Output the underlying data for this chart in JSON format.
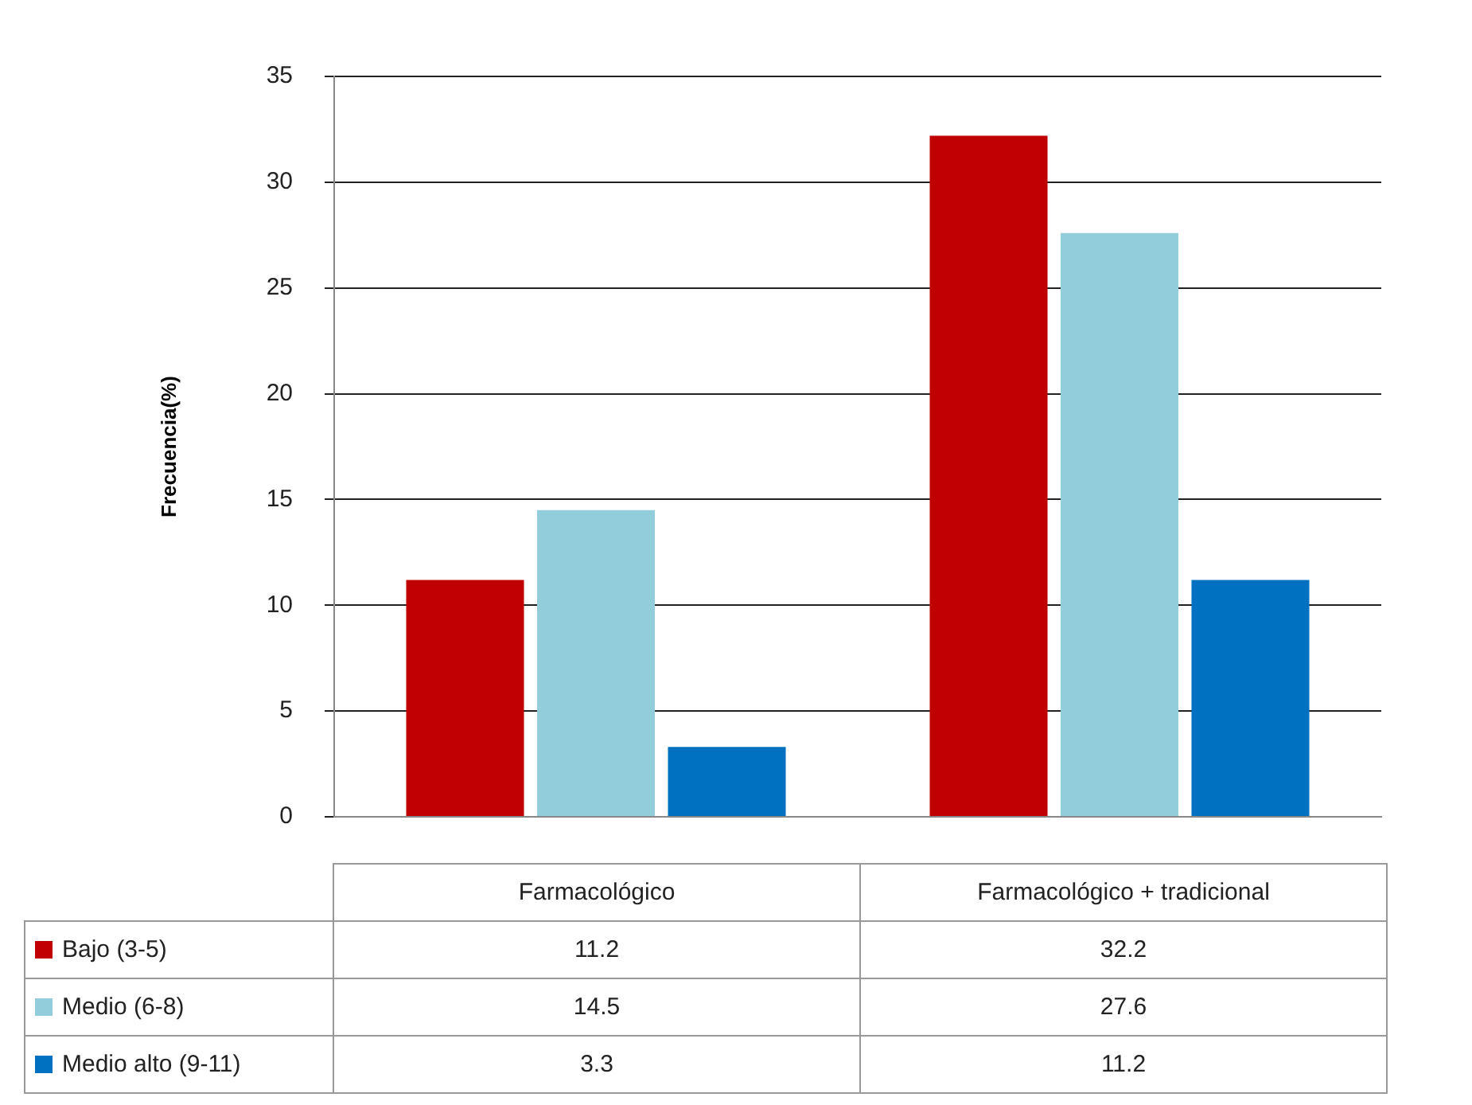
{
  "chart_data": {
    "type": "bar",
    "ylabel": "Frecuencia(%)",
    "categories": [
      "Farmacológico",
      "Farmacológico + tradicional"
    ],
    "series": [
      {
        "name": "Bajo (3-5)",
        "color": "#c00000",
        "values": [
          11.2,
          32.2
        ]
      },
      {
        "name": "Medio (6-8)",
        "color": "#92cddc",
        "values": [
          14.5,
          27.6
        ]
      },
      {
        "name": "Medio alto (9-11)",
        "color": "#0070c0",
        "values": [
          3.3,
          11.2
        ]
      }
    ],
    "ylim": [
      0,
      35
    ],
    "yticks": [
      0,
      5,
      10,
      15,
      20,
      25,
      30,
      35
    ],
    "grid": "y",
    "data_labels": true,
    "legend": "bottom left"
  }
}
